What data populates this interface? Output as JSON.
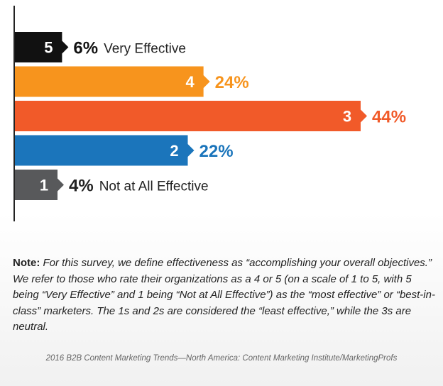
{
  "chart_data": {
    "type": "bar",
    "orientation": "horizontal",
    "categories": [
      "5",
      "4",
      "3",
      "2",
      "1"
    ],
    "values": [
      6,
      24,
      44,
      22,
      4
    ],
    "value_labels": [
      "6%",
      "24%",
      "44%",
      "22%",
      "4%"
    ],
    "annotations": [
      "Very Effective",
      "",
      "",
      "",
      "Not at All Effective"
    ],
    "colors": [
      "#111111",
      "#f7941d",
      "#f15a29",
      "#1b75bb",
      "#58595b"
    ],
    "label_colors": [
      "#111111",
      "#f7941d",
      "#f15a29",
      "#1b75bb",
      "#222222"
    ],
    "title": "",
    "xlabel": "",
    "ylabel": "",
    "xlim": [
      0,
      44
    ],
    "grid": false,
    "legend": "none"
  },
  "note": {
    "label": "Note:",
    "text": "For this survey, we define effectiveness as “accomplishing your overall objectives.” We refer to those who rate their organizations as a 4 or 5 (on a scale of 1 to 5, with 5 being “Very Effective” and 1 being “Not at All Effective”) as the “most effective” or “best-in-class” marketers. The 1s and 2s are considered the “least effective,” while the 3s are neutral."
  },
  "source": "2016 B2B Content Marketing Trends—North America: Content Marketing Institute/MarketingProfs"
}
